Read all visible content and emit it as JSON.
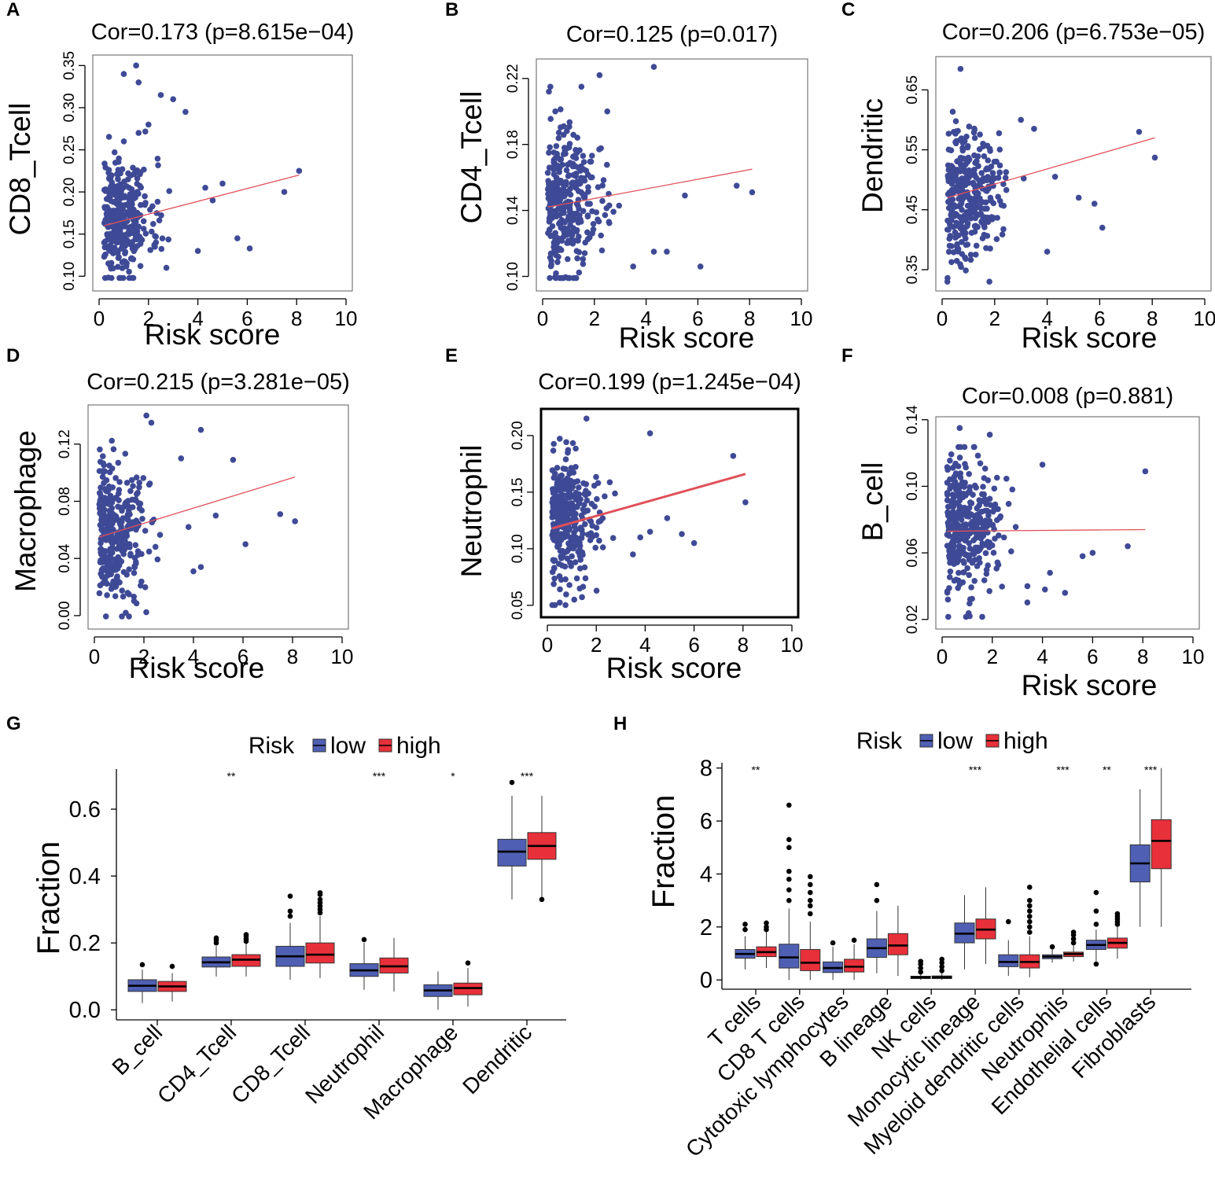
{
  "colors": {
    "point": "#3f4a96",
    "fit_line": "#e0505a",
    "low": "#4f5fb4",
    "high": "#e8303a",
    "axis": "#000000"
  },
  "chart_data": [
    {
      "panel": "A",
      "type": "scatter",
      "title": "Cor=0.173 (p=8.615e−04)",
      "xlabel": "Risk score",
      "ylabel": "CD8_Tcell",
      "xlim": [
        0,
        10
      ],
      "ylim": [
        0.09,
        0.355
      ],
      "xticks": [
        "0",
        "2",
        "4",
        "6",
        "8",
        "10"
      ],
      "yticks": [
        "0.10",
        "0.15",
        "0.20",
        "0.25",
        "0.30",
        "0.35"
      ],
      "fit": {
        "x": [
          0.2,
          8.1
        ],
        "y": [
          0.16,
          0.22
        ]
      },
      "outliers": [
        [
          1.0,
          0.34
        ],
        [
          1.5,
          0.35
        ],
        [
          1.6,
          0.33
        ],
        [
          2.5,
          0.315
        ],
        [
          3.0,
          0.31
        ],
        [
          3.5,
          0.295
        ],
        [
          8.1,
          0.225
        ],
        [
          7.5,
          0.2
        ],
        [
          5.6,
          0.145
        ],
        [
          6.1,
          0.133
        ],
        [
          4.3,
          0.205
        ],
        [
          4.6,
          0.19
        ],
        [
          4.0,
          0.13
        ],
        [
          5.0,
          0.21
        ],
        [
          2.0,
          0.28
        ],
        [
          1.6,
          0.27
        ]
      ],
      "cloud": {
        "n": 340,
        "x_mean": 1.4,
        "x_sd": 0.75,
        "x_min": 0.2,
        "y_mean": 0.17,
        "y_sd": 0.035,
        "seed": 11
      }
    },
    {
      "panel": "B",
      "type": "scatter",
      "title": "Cor=0.125 (p=0.017)",
      "xlabel": "Risk score",
      "ylabel": "CD4_Tcell",
      "xlim": [
        0,
        10
      ],
      "ylim": [
        0.095,
        0.228
      ],
      "xticks": [
        "0",
        "2",
        "4",
        "6",
        "8",
        "10"
      ],
      "yticks": [
        "0.10",
        "0.14",
        "0.18",
        "0.22"
      ],
      "fit": {
        "x": [
          0.2,
          8.1
        ],
        "y": [
          0.142,
          0.165
        ]
      },
      "outliers": [
        [
          4.3,
          0.227
        ],
        [
          2.2,
          0.222
        ],
        [
          1.5,
          0.215
        ],
        [
          6.1,
          0.106
        ],
        [
          7.5,
          0.155
        ],
        [
          8.1,
          0.151
        ],
        [
          4.3,
          0.115
        ],
        [
          4.8,
          0.115
        ],
        [
          5.5,
          0.149
        ],
        [
          3.5,
          0.106
        ],
        [
          2.5,
          0.2
        ],
        [
          0.3,
          0.215
        ]
      ],
      "cloud": {
        "n": 340,
        "x_mean": 1.3,
        "x_sd": 0.75,
        "x_min": 0.2,
        "y_mean": 0.145,
        "y_sd": 0.022,
        "seed": 23
      }
    },
    {
      "panel": "C",
      "type": "scatter",
      "title": "Cor=0.206 (p=6.753e−05)",
      "xlabel": "Risk score",
      "ylabel": "Dendritic",
      "xlim": [
        0,
        10
      ],
      "ylim": [
        0.325,
        0.695
      ],
      "xticks": [
        "0",
        "2",
        "4",
        "6",
        "8",
        "10"
      ],
      "yticks": [
        "0.35",
        "0.45",
        "0.55",
        "0.65"
      ],
      "fit": {
        "x": [
          0.2,
          8.1
        ],
        "y": [
          0.47,
          0.57
        ]
      },
      "outliers": [
        [
          0.7,
          0.685
        ],
        [
          7.5,
          0.58
        ],
        [
          8.1,
          0.537
        ],
        [
          6.1,
          0.42
        ],
        [
          4.0,
          0.38
        ],
        [
          3.0,
          0.6
        ],
        [
          3.5,
          0.585
        ],
        [
          5.2,
          0.47
        ],
        [
          5.8,
          0.46
        ],
        [
          4.3,
          0.505
        ],
        [
          1.8,
          0.33
        ],
        [
          0.2,
          0.33
        ]
      ],
      "cloud": {
        "n": 340,
        "x_mean": 1.3,
        "x_sd": 0.75,
        "x_min": 0.2,
        "y_mean": 0.48,
        "y_sd": 0.055,
        "seed": 37
      }
    },
    {
      "panel": "D",
      "type": "scatter",
      "title": "Cor=0.215 (p=3.281e−05)",
      "xlabel": "Risk score",
      "ylabel": "Macrophage",
      "xlim": [
        0,
        10
      ],
      "ylim": [
        -0.005,
        0.143
      ],
      "xticks": [
        "0",
        "2",
        "4",
        "6",
        "8",
        "10"
      ],
      "yticks": [
        "0.00",
        "0.04",
        "0.08",
        "0.12"
      ],
      "fit": {
        "x": [
          0.2,
          8.1
        ],
        "y": [
          0.055,
          0.097
        ]
      },
      "outliers": [
        [
          2.1,
          0.14
        ],
        [
          2.3,
          0.135
        ],
        [
          4.3,
          0.13
        ],
        [
          5.6,
          0.109
        ],
        [
          7.5,
          0.071
        ],
        [
          8.1,
          0.066
        ],
        [
          6.1,
          0.05
        ],
        [
          4.3,
          0.034
        ],
        [
          4.0,
          0.031
        ],
        [
          3.8,
          0.062
        ],
        [
          4.9,
          0.07
        ],
        [
          3.5,
          0.11
        ]
      ],
      "cloud": {
        "n": 340,
        "x_mean": 1.3,
        "x_sd": 0.75,
        "x_min": 0.2,
        "y_mean": 0.058,
        "y_sd": 0.024,
        "seed": 41
      }
    },
    {
      "panel": "E",
      "type": "scatter",
      "title": "Cor=0.199 (p=1.245e−04)",
      "xlabel": "Risk score",
      "ylabel": "Neutrophil",
      "xlim": [
        0,
        10
      ],
      "ylim": [
        0.045,
        0.218
      ],
      "xticks": [
        "0",
        "2",
        "4",
        "6",
        "8",
        "10"
      ],
      "yticks": [
        "0.05",
        "0.10",
        "0.15",
        "0.20"
      ],
      "fit": {
        "x": [
          0.2,
          8.1
        ],
        "y": [
          0.118,
          0.166
        ]
      },
      "outliers": [
        [
          1.6,
          0.215
        ],
        [
          4.2,
          0.202
        ],
        [
          7.6,
          0.182
        ],
        [
          8.1,
          0.141
        ],
        [
          6.0,
          0.105
        ],
        [
          5.5,
          0.113
        ],
        [
          4.2,
          0.115
        ],
        [
          3.8,
          0.11
        ],
        [
          4.9,
          0.127
        ],
        [
          3.5,
          0.095
        ],
        [
          1.1,
          0.055
        ]
      ],
      "cloud": {
        "n": 340,
        "x_mean": 1.3,
        "x_sd": 0.75,
        "x_min": 0.2,
        "y_mean": 0.124,
        "y_sd": 0.028,
        "seed": 53
      }
    },
    {
      "panel": "F",
      "type": "scatter",
      "title": "Cor=0.008 (p=0.881)",
      "xlabel": "Risk score",
      "ylabel": "B_cell",
      "xlim": [
        0,
        10
      ],
      "ylim": [
        0.018,
        0.138
      ],
      "xticks": [
        "0",
        "2",
        "4",
        "6",
        "8",
        "10"
      ],
      "yticks": [
        "0.02",
        "0.06",
        "0.10",
        "0.14"
      ],
      "fit": {
        "x": [
          0.2,
          8.1
        ],
        "y": [
          0.073,
          0.074
        ]
      },
      "outliers": [
        [
          0.7,
          0.135
        ],
        [
          1.9,
          0.131
        ],
        [
          4.0,
          0.113
        ],
        [
          8.1,
          0.109
        ],
        [
          7.4,
          0.064
        ],
        [
          6.0,
          0.06
        ],
        [
          5.6,
          0.058
        ],
        [
          4.9,
          0.036
        ],
        [
          4.3,
          0.048
        ],
        [
          4.1,
          0.038
        ],
        [
          3.4,
          0.04
        ],
        [
          1.1,
          0.022
        ]
      ],
      "cloud": {
        "n": 340,
        "x_mean": 1.3,
        "x_sd": 0.75,
        "x_min": 0.2,
        "y_mean": 0.073,
        "y_sd": 0.02,
        "seed": 67
      }
    },
    {
      "panel": "G",
      "type": "box",
      "ylabel": "Fraction",
      "legend_title": "Risk",
      "legend": [
        "low",
        "high"
      ],
      "ylim": [
        -0.03,
        0.72
      ],
      "yticks": [
        0.0,
        0.2,
        0.4,
        0.6
      ],
      "ytick_labels": [
        "0.0",
        "0.2",
        "0.4",
        "0.6"
      ],
      "categories": [
        "B_cell",
        "CD4_Tcell",
        "CD8_Tcell",
        "Neutrophil",
        "Macrophage",
        "Dendritic"
      ],
      "significance": [
        "",
        "**",
        "",
        "***",
        "*",
        "***"
      ],
      "series": [
        {
          "name": "low",
          "boxes": [
            {
              "min": 0.02,
              "q1": 0.055,
              "median": 0.072,
              "q3": 0.09,
              "max": 0.12,
              "outliers": [
                0.135
              ]
            },
            {
              "min": 0.1,
              "q1": 0.128,
              "median": 0.142,
              "q3": 0.158,
              "max": 0.19,
              "outliers": [
                0.2,
                0.208,
                0.215
              ]
            },
            {
              "min": 0.09,
              "q1": 0.13,
              "median": 0.16,
              "q3": 0.19,
              "max": 0.26,
              "outliers": [
                0.28,
                0.295,
                0.34
              ]
            },
            {
              "min": 0.06,
              "q1": 0.1,
              "median": 0.118,
              "q3": 0.138,
              "max": 0.2,
              "outliers": [
                0.21
              ]
            },
            {
              "min": 0.0,
              "q1": 0.04,
              "median": 0.058,
              "q3": 0.075,
              "max": 0.115,
              "outliers": []
            },
            {
              "min": 0.33,
              "q1": 0.43,
              "median": 0.473,
              "q3": 0.51,
              "max": 0.64,
              "outliers": [
                0.68
              ]
            }
          ]
        },
        {
          "name": "high",
          "boxes": [
            {
              "min": 0.025,
              "q1": 0.055,
              "median": 0.07,
              "q3": 0.085,
              "max": 0.11,
              "outliers": [
                0.13
              ]
            },
            {
              "min": 0.1,
              "q1": 0.13,
              "median": 0.15,
              "q3": 0.165,
              "max": 0.2,
              "outliers": [
                0.205,
                0.212,
                0.22,
                0.225
              ]
            },
            {
              "min": 0.095,
              "q1": 0.14,
              "median": 0.165,
              "q3": 0.2,
              "max": 0.28,
              "outliers": [
                0.29,
                0.3,
                0.31,
                0.32,
                0.33,
                0.345,
                0.35
              ]
            },
            {
              "min": 0.055,
              "q1": 0.11,
              "median": 0.13,
              "q3": 0.155,
              "max": 0.215,
              "outliers": []
            },
            {
              "min": 0.01,
              "q1": 0.045,
              "median": 0.065,
              "q3": 0.08,
              "max": 0.125,
              "outliers": [
                0.14
              ]
            },
            {
              "min": 0.33,
              "q1": 0.45,
              "median": 0.49,
              "q3": 0.53,
              "max": 0.64,
              "outliers": [
                0.33
              ]
            }
          ]
        }
      ]
    },
    {
      "panel": "H",
      "type": "box",
      "ylabel": "Fraction",
      "legend_title": "Risk",
      "legend": [
        "low",
        "high"
      ],
      "ylim": [
        -0.35,
        8.2
      ],
      "yticks": [
        0,
        2,
        4,
        6,
        8
      ],
      "ytick_labels": [
        "0",
        "2",
        "4",
        "6",
        "8"
      ],
      "categories": [
        "T cells",
        "CD8 T cells",
        "Cytotoxic lymphocytes",
        "B lineage",
        "NK cells",
        "Monocytic lineage",
        "Myeloid dendritic cells",
        "Neutrophils",
        "Endothelial cells",
        "Fibroblasts"
      ],
      "significance": [
        "**",
        "",
        "",
        "",
        "",
        "***",
        "",
        "***",
        "**",
        "***"
      ],
      "series": [
        {
          "name": "low",
          "boxes": [
            {
              "min": 0.4,
              "q1": 0.82,
              "median": 0.98,
              "q3": 1.15,
              "max": 1.65,
              "outliers": [
                1.9,
                2.1
              ]
            },
            {
              "min": 0.0,
              "q1": 0.45,
              "median": 0.85,
              "q3": 1.35,
              "max": 2.7,
              "outliers": [
                3.0,
                3.4,
                3.8,
                4.1,
                5.0,
                5.3,
                6.6
              ]
            },
            {
              "min": 0.0,
              "q1": 0.28,
              "median": 0.45,
              "q3": 0.68,
              "max": 1.25,
              "outliers": [
                1.4
              ]
            },
            {
              "min": 0.25,
              "q1": 0.85,
              "median": 1.2,
              "q3": 1.55,
              "max": 2.6,
              "outliers": [
                3.0,
                3.6
              ]
            },
            {
              "min": 0.0,
              "q1": 0.05,
              "median": 0.1,
              "q3": 0.14,
              "max": 0.22,
              "outliers": [
                0.3,
                0.45,
                0.6,
                0.7
              ]
            },
            {
              "min": 0.4,
              "q1": 1.4,
              "median": 1.75,
              "q3": 2.15,
              "max": 3.2,
              "outliers": []
            },
            {
              "min": 0.15,
              "q1": 0.5,
              "median": 0.68,
              "q3": 0.95,
              "max": 1.5,
              "outliers": [
                2.2
              ]
            },
            {
              "min": 0.65,
              "q1": 0.8,
              "median": 0.88,
              "q3": 0.95,
              "max": 1.15,
              "outliers": [
                1.25
              ]
            },
            {
              "min": 0.7,
              "q1": 1.15,
              "median": 1.32,
              "q3": 1.5,
              "max": 1.9,
              "outliers": [
                2.1,
                2.6,
                3.3,
                0.6
              ]
            },
            {
              "min": 2.0,
              "q1": 3.7,
              "median": 4.4,
              "q3": 5.1,
              "max": 7.2,
              "outliers": []
            }
          ]
        },
        {
          "name": "high",
          "boxes": [
            {
              "min": 0.45,
              "q1": 0.88,
              "median": 1.05,
              "q3": 1.25,
              "max": 1.8,
              "outliers": [
                1.9,
                2.0,
                2.15
              ]
            },
            {
              "min": 0.0,
              "q1": 0.35,
              "median": 0.65,
              "q3": 1.15,
              "max": 2.2,
              "outliers": [
                2.5,
                2.8,
                3.0,
                3.3,
                3.6,
                3.9
              ]
            },
            {
              "min": 0.0,
              "q1": 0.3,
              "median": 0.5,
              "q3": 0.78,
              "max": 1.35,
              "outliers": [
                1.5
              ]
            },
            {
              "min": 0.15,
              "q1": 0.95,
              "median": 1.3,
              "q3": 1.75,
              "max": 2.8,
              "outliers": []
            },
            {
              "min": 0.0,
              "q1": 0.05,
              "median": 0.1,
              "q3": 0.15,
              "max": 0.25,
              "outliers": [
                0.35,
                0.5,
                0.65,
                0.78
              ]
            },
            {
              "min": 0.6,
              "q1": 1.55,
              "median": 1.9,
              "q3": 2.3,
              "max": 3.5,
              "outliers": []
            },
            {
              "min": 0.1,
              "q1": 0.45,
              "median": 0.68,
              "q3": 0.95,
              "max": 1.65,
              "outliers": [
                1.8,
                2.0,
                2.2,
                2.4,
                2.6,
                2.8,
                3.0,
                3.5
              ]
            },
            {
              "min": 0.7,
              "q1": 0.88,
              "median": 0.98,
              "q3": 1.05,
              "max": 1.3,
              "outliers": [
                1.4,
                1.55,
                1.7,
                1.8
              ]
            },
            {
              "min": 0.8,
              "q1": 1.2,
              "median": 1.4,
              "q3": 1.58,
              "max": 2.0,
              "outliers": [
                2.1,
                2.2,
                2.3,
                2.4,
                2.5
              ]
            },
            {
              "min": 2.0,
              "q1": 4.2,
              "median": 5.25,
              "q3": 6.05,
              "max": 8.0,
              "outliers": []
            }
          ]
        }
      ]
    }
  ]
}
